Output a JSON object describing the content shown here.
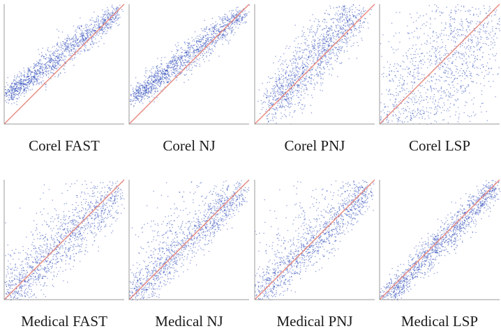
{
  "colors": {
    "points": "#2a47b8",
    "diagonal": "#e8897f",
    "axes": "#9a9a9a"
  },
  "chart_data": [
    {
      "type": "scatter",
      "title": "Corel FAST",
      "xlim": [
        0,
        1
      ],
      "ylim": [
        0,
        1
      ],
      "grid": false,
      "diagonal": true,
      "trend": {
        "from": [
          0.03,
          0.25
        ],
        "to": [
          0.95,
          0.94
        ]
      },
      "spread": 0.045,
      "skew": "lower-left"
    },
    {
      "type": "scatter",
      "title": "Corel NJ",
      "xlim": [
        0,
        1
      ],
      "ylim": [
        0,
        1
      ],
      "grid": false,
      "diagonal": true,
      "trend": {
        "from": [
          0.03,
          0.22
        ],
        "to": [
          0.95,
          0.93
        ]
      },
      "spread": 0.045,
      "skew": "lower-left"
    },
    {
      "type": "scatter",
      "title": "Corel PNJ",
      "xlim": [
        0,
        1
      ],
      "ylim": [
        0,
        1
      ],
      "grid": false,
      "diagonal": true,
      "trend": {
        "from": [
          0.12,
          0.15
        ],
        "to": [
          0.85,
          0.95
        ]
      },
      "spread": 0.09,
      "skew": "none"
    },
    {
      "type": "scatter",
      "title": "Corel LSP",
      "xlim": [
        0,
        1
      ],
      "ylim": [
        0,
        1
      ],
      "grid": false,
      "diagonal": true,
      "trend": {
        "from": [
          0.1,
          0.05
        ],
        "to": [
          0.9,
          0.85
        ]
      },
      "spread": 0.22,
      "skew": "none"
    },
    {
      "type": "scatter",
      "title": "Medical FAST",
      "xlim": [
        0,
        1
      ],
      "ylim": [
        0,
        1
      ],
      "grid": false,
      "diagonal": true,
      "trend": {
        "from": [
          0.0,
          0.0
        ],
        "to": [
          0.95,
          0.9
        ]
      },
      "spread": 0.08,
      "skew": "upper-left"
    },
    {
      "type": "scatter",
      "title": "Medical NJ",
      "xlim": [
        0,
        1
      ],
      "ylim": [
        0,
        1
      ],
      "grid": false,
      "diagonal": true,
      "trend": {
        "from": [
          0.0,
          0.0
        ],
        "to": [
          0.95,
          0.92
        ]
      },
      "spread": 0.06,
      "skew": "upper-left-strong"
    },
    {
      "type": "scatter",
      "title": "Medical PNJ",
      "xlim": [
        0,
        1
      ],
      "ylim": [
        0,
        1
      ],
      "grid": false,
      "diagonal": true,
      "trend": {
        "from": [
          0.0,
          0.0
        ],
        "to": [
          0.95,
          0.9
        ]
      },
      "spread": 0.06,
      "skew": "upper-left-strong"
    },
    {
      "type": "scatter",
      "title": "Medical LSP",
      "xlim": [
        0,
        1
      ],
      "ylim": [
        0,
        1
      ],
      "grid": false,
      "diagonal": true,
      "trend": {
        "from": [
          0.03,
          0.0
        ],
        "to": [
          0.97,
          0.95
        ]
      },
      "spread": 0.05,
      "skew": "none"
    }
  ]
}
